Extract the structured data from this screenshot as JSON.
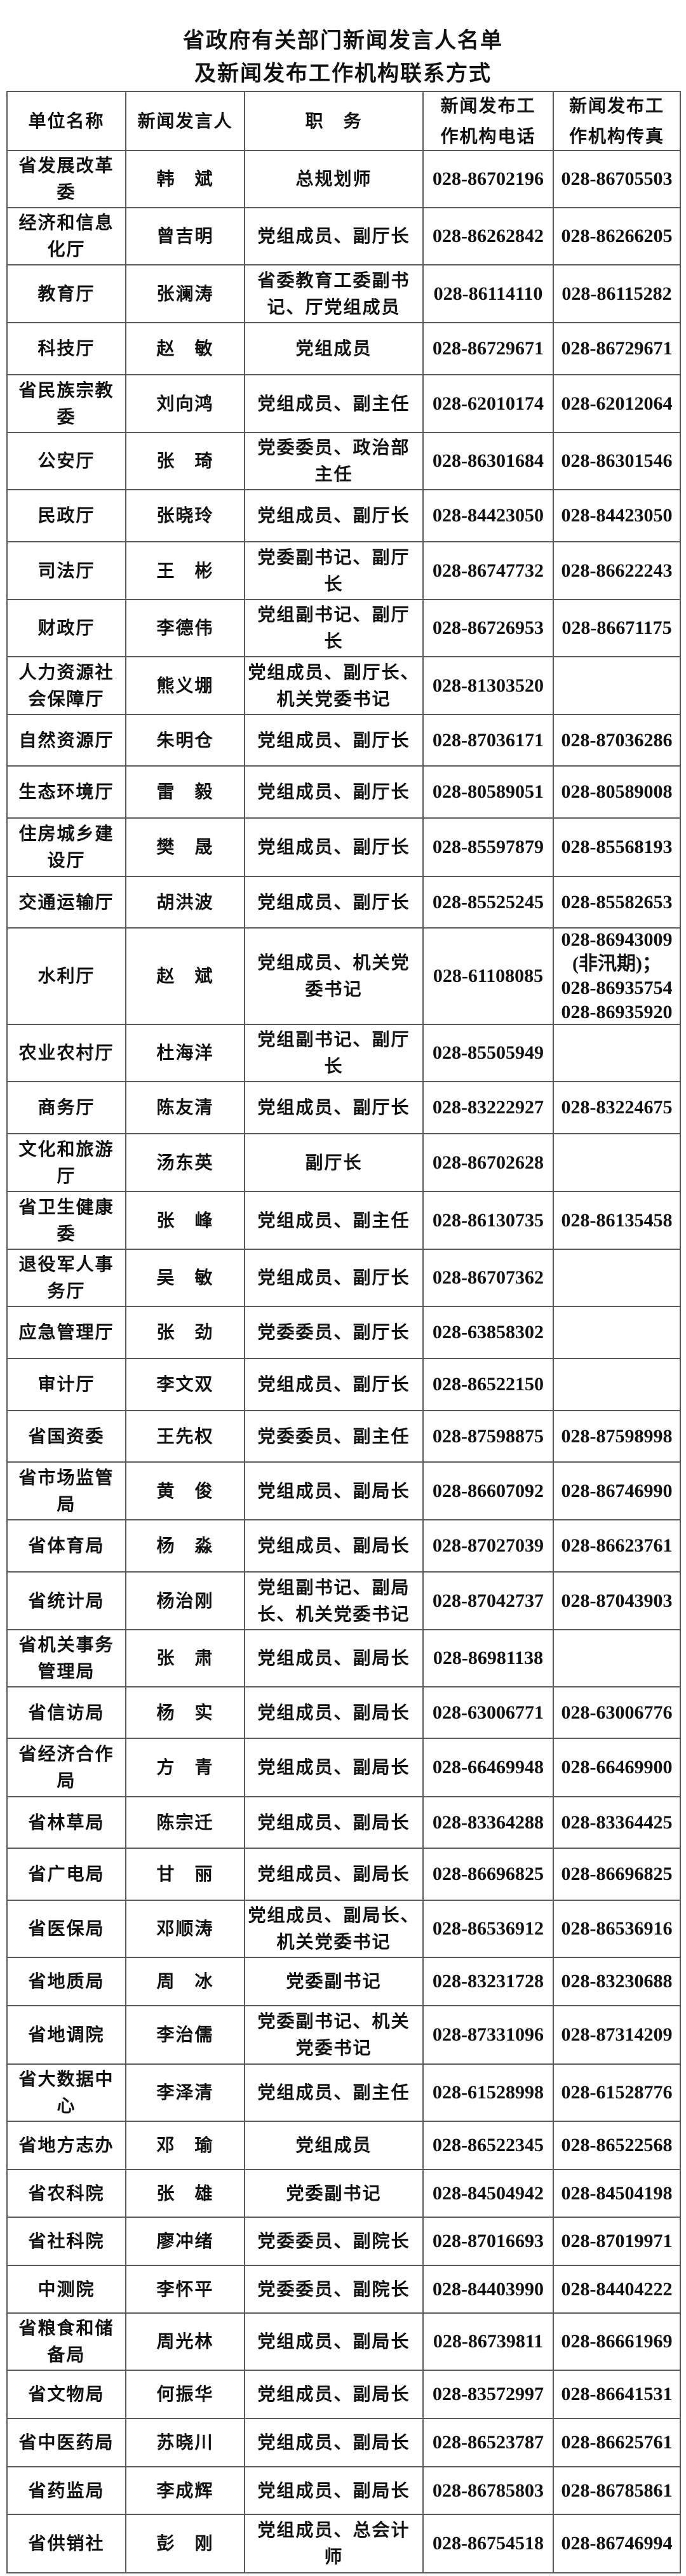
{
  "title": {
    "line1": "省政府有关部门新闻发言人名单",
    "line2": "及新闻发布工作机构联系方式"
  },
  "table": {
    "headers": [
      "单位名称",
      "新闻发言人",
      "职　务",
      "新闻发布工\n作机构电话",
      "新闻发布工\n作机构传真"
    ],
    "rows": [
      {
        "unit": "省发展改革\n委",
        "spokesperson": "韩　斌",
        "position": "总规划师",
        "phone": "028-86702196",
        "fax": "028-86705503"
      },
      {
        "unit": "经济和信息\n化厅",
        "spokesperson": "曾吉明",
        "position": "党组成员、副厅长",
        "phone": "028-86262842",
        "fax": "028-86266205"
      },
      {
        "unit": "教育厅",
        "spokesperson": "张澜涛",
        "position": "省委教育工委副书\n记、厅党组成员",
        "phone": "028-86114110",
        "fax": "028-86115282"
      },
      {
        "unit": "科技厅",
        "spokesperson": "赵　敏",
        "position": "党组成员",
        "phone": "028-86729671",
        "fax": "028-86729671"
      },
      {
        "unit": "省民族宗教\n委",
        "spokesperson": "刘向鸿",
        "position": "党组成员、副主任",
        "phone": "028-62010174",
        "fax": "028-62012064"
      },
      {
        "unit": "公安厅",
        "spokesperson": "张　琦",
        "position": "党委委员、政治部\n主任",
        "phone": "028-86301684",
        "fax": "028-86301546"
      },
      {
        "unit": "民政厅",
        "spokesperson": "张晓玲",
        "position": "党组成员、副厅长",
        "phone": "028-84423050",
        "fax": "028-84423050"
      },
      {
        "unit": "司法厅",
        "spokesperson": "王　彬",
        "position": "党委副书记、副厅\n长",
        "phone": "028-86747732",
        "fax": "028-86622243"
      },
      {
        "unit": "财政厅",
        "spokesperson": "李德伟",
        "position": "党组副书记、副厅\n长",
        "phone": "028-86726953",
        "fax": "028-86671175"
      },
      {
        "unit": "人力资源社\n会保障厅",
        "spokesperson": "熊义堋",
        "position": "党组成员、副厅长、\n机关党委书记",
        "phone": "028-81303520",
        "fax": ""
      },
      {
        "unit": "自然资源厅",
        "spokesperson": "朱明仓",
        "position": "党组成员、副厅长",
        "phone": "028-87036171",
        "fax": "028-87036286"
      },
      {
        "unit": "生态环境厅",
        "spokesperson": "雷　毅",
        "position": "党组成员、副厅长",
        "phone": "028-80589051",
        "fax": "028-80589008"
      },
      {
        "unit": "住房城乡建\n设厅",
        "spokesperson": "樊　晟",
        "position": "党组成员、副厅长",
        "phone": "028-85597879",
        "fax": "028-85568193"
      },
      {
        "unit": "交通运输厅",
        "spokesperson": "胡洪波",
        "position": "党组成员、副厅长",
        "phone": "028-85525245",
        "fax": "028-85582653"
      },
      {
        "unit": "水利厅",
        "spokesperson": "赵　斌",
        "position": "党组成员、机关党\n委书记",
        "phone": "028-61108085",
        "fax": "028-86943009\n(非汛期)；\n028-86935754\n028-86935920"
      },
      {
        "unit": "农业农村厅",
        "spokesperson": "杜海洋",
        "position": "党组副书记、副厅\n长",
        "phone": "028-85505949",
        "fax": ""
      },
      {
        "unit": "商务厅",
        "spokesperson": "陈友清",
        "position": "党组成员、副厅长",
        "phone": "028-83222927",
        "fax": "028-83224675"
      },
      {
        "unit": "文化和旅游\n厅",
        "spokesperson": "汤东英",
        "position": "副厅长",
        "phone": "028-86702628",
        "fax": ""
      },
      {
        "unit": "省卫生健康\n委",
        "spokesperson": "张　峰",
        "position": "党组成员、副主任",
        "phone": "028-86130735",
        "fax": "028-86135458"
      },
      {
        "unit": "退役军人事\n务厅",
        "spokesperson": "吴　敏",
        "position": "党组成员、副厅长",
        "phone": "028-86707362",
        "fax": ""
      },
      {
        "unit": "应急管理厅",
        "spokesperson": "张　劲",
        "position": "党委委员、副厅长",
        "phone": "028-63858302",
        "fax": ""
      },
      {
        "unit": "审计厅",
        "spokesperson": "李文双",
        "position": "党组成员、副厅长",
        "phone": "028-86522150",
        "fax": ""
      },
      {
        "unit": "省国资委",
        "spokesperson": "王先权",
        "position": "党委委员、副主任",
        "phone": "028-87598875",
        "fax": "028-87598998"
      },
      {
        "unit": "省市场监管\n局",
        "spokesperson": "黄　俊",
        "position": "党组成员、副局长",
        "phone": "028-86607092",
        "fax": "028-86746990"
      },
      {
        "unit": "省体育局",
        "spokesperson": "杨　淼",
        "position": "党组成员、副局长",
        "phone": "028-87027039",
        "fax": "028-86623761"
      },
      {
        "unit": "省统计局",
        "spokesperson": "杨治刚",
        "position": "党组副书记、副局\n长、机关党委书记",
        "phone": "028-87042737",
        "fax": "028-87043903"
      },
      {
        "unit": "省机关事务\n管理局",
        "spokesperson": "张　肃",
        "position": "党组成员、副局长",
        "phone": "028-86981138",
        "fax": ""
      },
      {
        "unit": "省信访局",
        "spokesperson": "杨　实",
        "position": "党组成员、副局长",
        "phone": "028-63006771",
        "fax": "028-63006776"
      },
      {
        "unit": "省经济合作\n局",
        "spokesperson": "方　青",
        "position": "党组成员、副局长",
        "phone": "028-66469948",
        "fax": "028-66469900"
      },
      {
        "unit": "省林草局",
        "spokesperson": "陈宗迁",
        "position": "党组成员、副局长",
        "phone": "028-83364288",
        "fax": "028-83364425"
      },
      {
        "unit": "省广电局",
        "spokesperson": "甘　丽",
        "position": "党组成员、副局长",
        "phone": "028-86696825",
        "fax": "028-86696825"
      },
      {
        "unit": "省医保局",
        "spokesperson": "邓顺涛",
        "position": "党组成员、副局长、\n机关党委书记",
        "phone": "028-86536912",
        "fax": "028-86536916"
      },
      {
        "unit": "省地质局",
        "spokesperson": "周　冰",
        "position": "党委副书记",
        "phone": "028-83231728",
        "fax": "028-83230688"
      },
      {
        "unit": "省地调院",
        "spokesperson": "李治儒",
        "position": "党委副书记、机关\n党委书记",
        "phone": "028-87331096",
        "fax": "028-87314209"
      },
      {
        "unit": "省大数据中\n心",
        "spokesperson": "李泽清",
        "position": "党组成员、副主任",
        "phone": "028-61528998",
        "fax": "028-61528776"
      },
      {
        "unit": "省地方志办",
        "spokesperson": "邓　瑜",
        "position": "党组成员",
        "phone": "028-86522345",
        "fax": "028-86522568"
      },
      {
        "unit": "省农科院",
        "spokesperson": "张　雄",
        "position": "党委副书记",
        "phone": "028-84504942",
        "fax": "028-84504198"
      },
      {
        "unit": "省社科院",
        "spokesperson": "廖冲绪",
        "position": "党委委员、副院长",
        "phone": "028-87016693",
        "fax": "028-87019971"
      },
      {
        "unit": "中测院",
        "spokesperson": "李怀平",
        "position": "党委委员、副院长",
        "phone": "028-84403990",
        "fax": "028-84404222"
      },
      {
        "unit": "省粮食和储\n备局",
        "spokesperson": "周光林",
        "position": "党组成员、副局长",
        "phone": "028-86739811",
        "fax": "028-86661969"
      },
      {
        "unit": "省文物局",
        "spokesperson": "何振华",
        "position": "党组成员、副局长",
        "phone": "028-83572997",
        "fax": "028-86641531"
      },
      {
        "unit": "省中医药局",
        "spokesperson": "苏晓川",
        "position": "党组成员、副局长",
        "phone": "028-86523787",
        "fax": "028-86625761"
      },
      {
        "unit": "省药监局",
        "spokesperson": "李成辉",
        "position": "党组成员、副局长",
        "phone": "028-86785803",
        "fax": "028-86785861"
      },
      {
        "unit": "省供销社",
        "spokesperson": "彭　刚",
        "position": "党组成员、总会计\n师",
        "phone": "028-86754518",
        "fax": "028-86746994"
      }
    ]
  }
}
